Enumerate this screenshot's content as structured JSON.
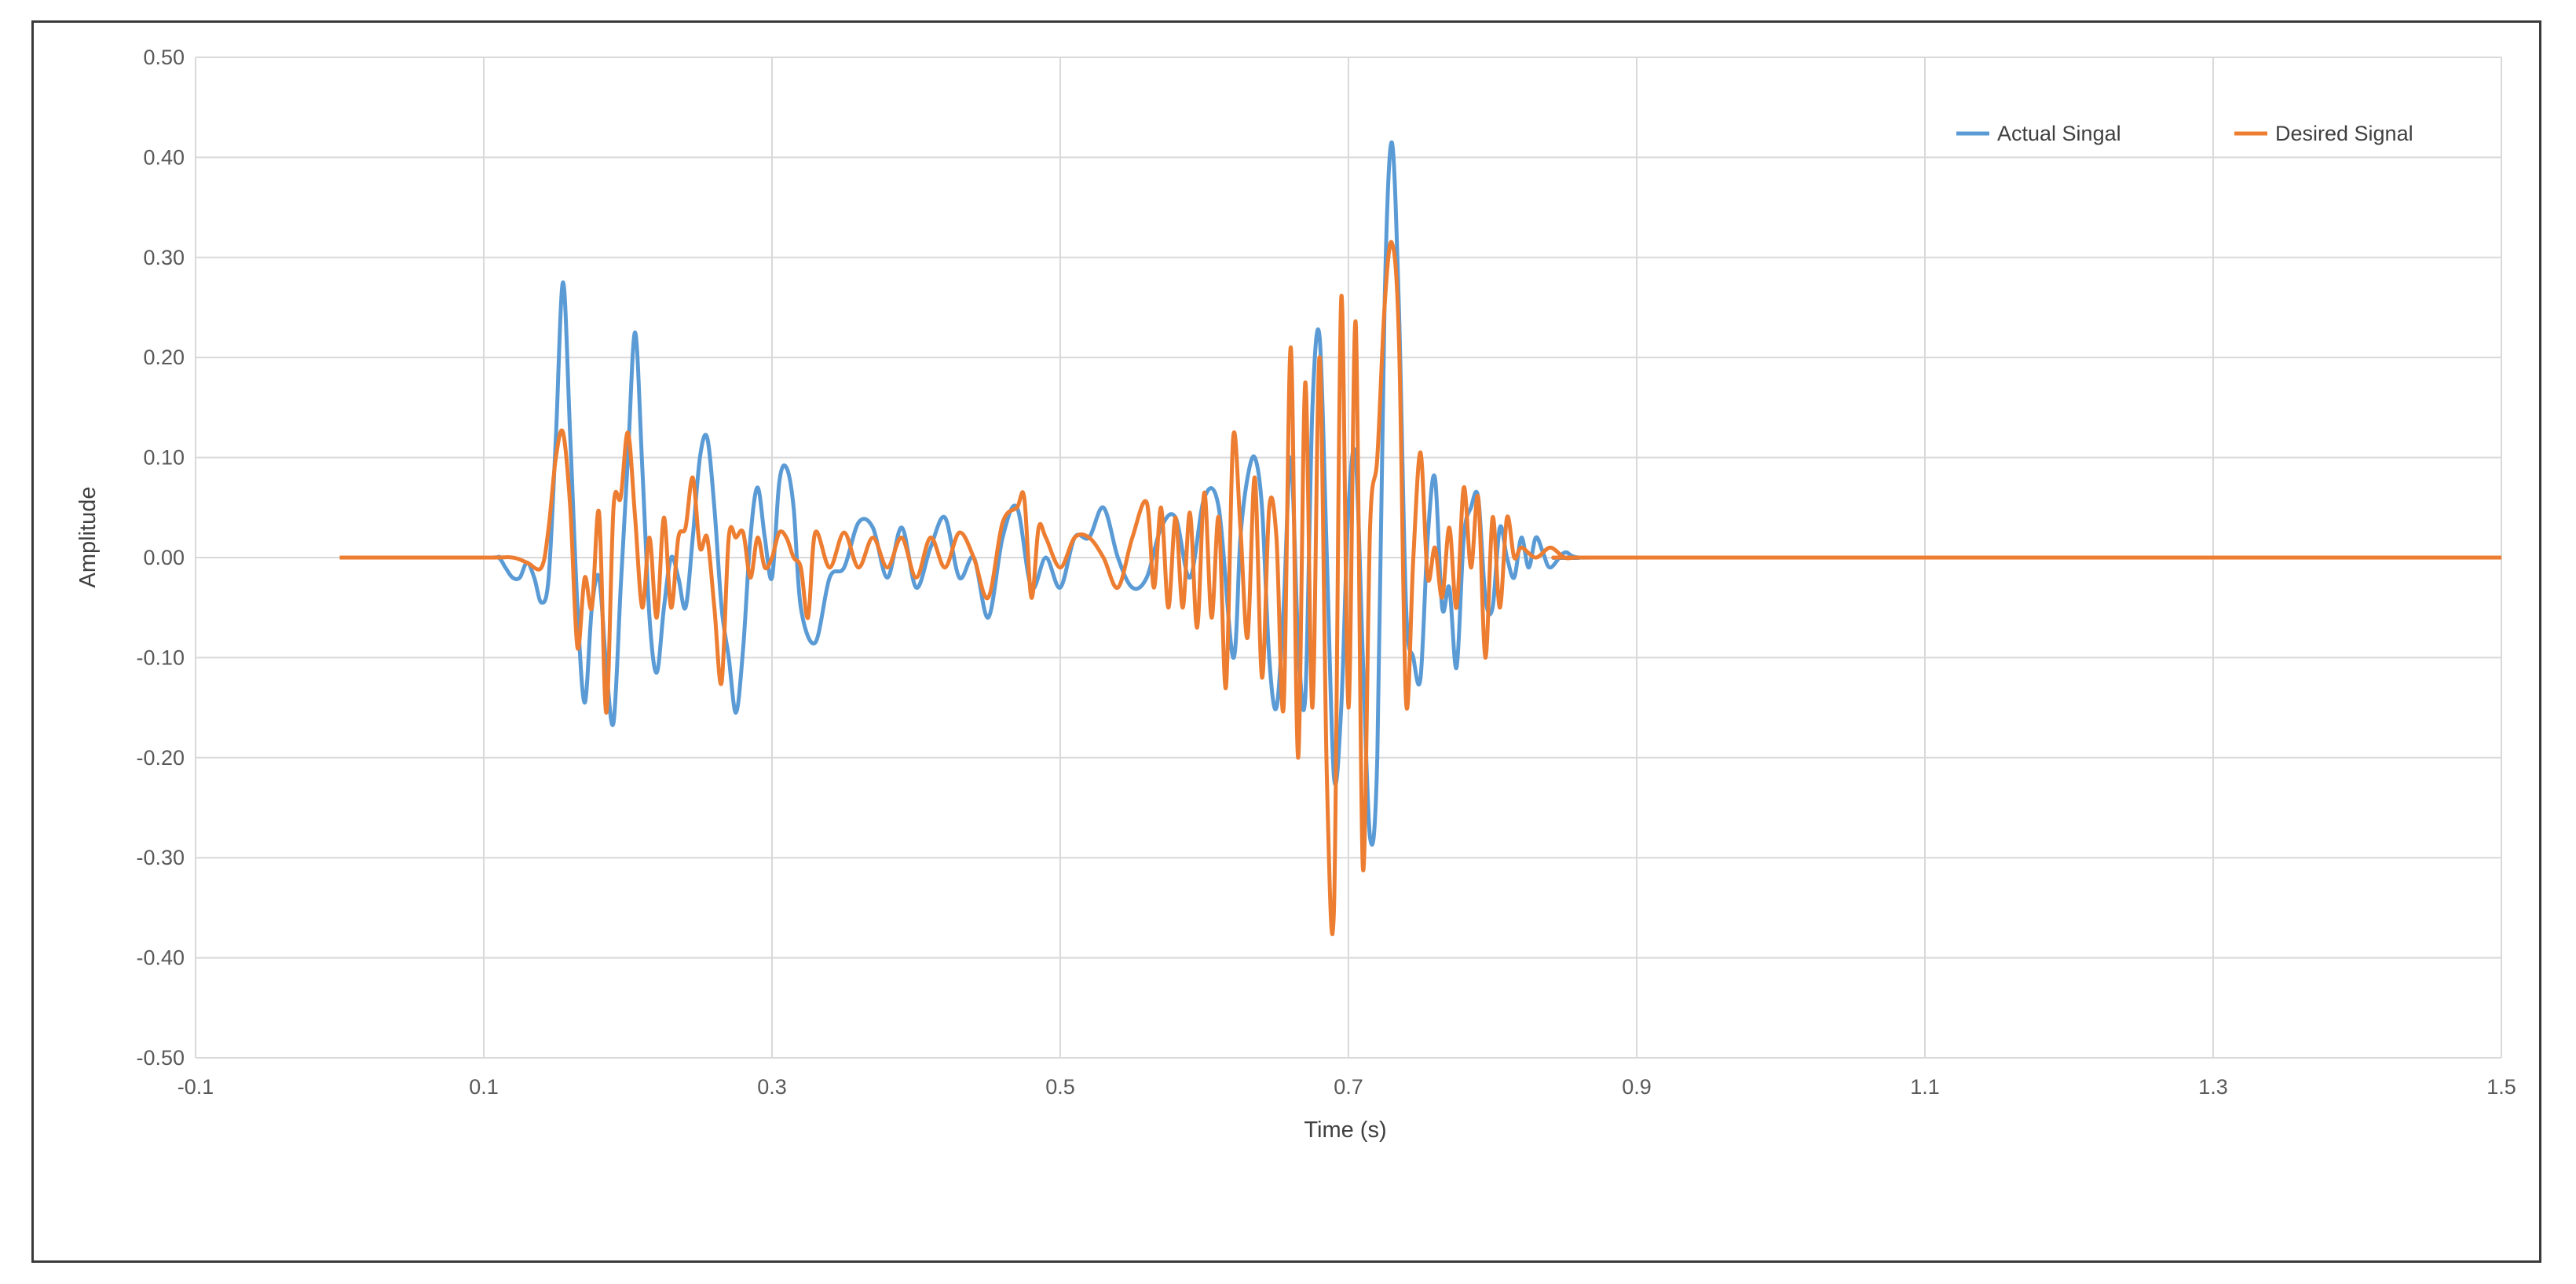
{
  "chart_data": {
    "type": "line",
    "title": "",
    "xlabel": "Time (s)",
    "ylabel": "Amplitude",
    "xlim": [
      -0.1,
      1.5
    ],
    "ylim": [
      -0.5,
      0.5
    ],
    "x_ticks": [
      -0.1,
      0.1,
      0.3,
      0.5,
      0.7,
      0.9,
      1.1,
      1.3,
      1.5
    ],
    "x_tick_labels": [
      "-0.1",
      "0.1",
      "0.3",
      "0.5",
      "0.7",
      "0.9",
      "1.1",
      "1.3",
      "1.5"
    ],
    "y_ticks": [
      -0.5,
      -0.4,
      -0.3,
      -0.2,
      -0.1,
      0.0,
      0.1,
      0.2,
      0.3,
      0.4,
      0.5
    ],
    "y_tick_labels": [
      "-0.50",
      "-0.40",
      "-0.30",
      "-0.20",
      "-0.10",
      "0.00",
      "0.10",
      "0.20",
      "0.30",
      "0.40",
      "0.50"
    ],
    "grid": true,
    "legend_position": "top-right",
    "series": [
      {
        "name": "Actual Singal",
        "color": "#5b9bd5",
        "x": [
          0.0,
          0.1,
          0.11,
          0.115,
          0.12,
          0.125,
          0.13,
          0.135,
          0.14,
          0.145,
          0.15,
          0.155,
          0.16,
          0.165,
          0.17,
          0.175,
          0.18,
          0.185,
          0.19,
          0.195,
          0.2,
          0.205,
          0.21,
          0.215,
          0.22,
          0.225,
          0.23,
          0.235,
          0.24,
          0.245,
          0.25,
          0.255,
          0.26,
          0.265,
          0.27,
          0.275,
          0.28,
          0.285,
          0.29,
          0.295,
          0.3,
          0.305,
          0.31,
          0.315,
          0.32,
          0.33,
          0.34,
          0.35,
          0.36,
          0.37,
          0.38,
          0.39,
          0.4,
          0.41,
          0.42,
          0.43,
          0.44,
          0.45,
          0.46,
          0.47,
          0.48,
          0.49,
          0.5,
          0.51,
          0.52,
          0.53,
          0.54,
          0.55,
          0.56,
          0.57,
          0.58,
          0.59,
          0.6,
          0.61,
          0.62,
          0.625,
          0.63,
          0.635,
          0.64,
          0.645,
          0.65,
          0.655,
          0.66,
          0.665,
          0.67,
          0.675,
          0.68,
          0.685,
          0.69,
          0.695,
          0.7,
          0.705,
          0.71,
          0.715,
          0.72,
          0.725,
          0.73,
          0.735,
          0.74,
          0.745,
          0.75,
          0.755,
          0.76,
          0.765,
          0.77,
          0.775,
          0.78,
          0.785,
          0.79,
          0.795,
          0.8,
          0.805,
          0.81,
          0.815,
          0.82,
          0.825,
          0.83,
          0.835,
          0.84,
          0.85,
          0.86,
          0.9,
          1.5
        ],
        "y": [
          0.0,
          0.0,
          0.0,
          -0.01,
          -0.02,
          -0.02,
          -0.005,
          -0.02,
          -0.045,
          -0.02,
          0.12,
          0.275,
          0.12,
          -0.05,
          -0.145,
          -0.05,
          -0.02,
          -0.11,
          -0.165,
          -0.03,
          0.1,
          0.225,
          0.09,
          -0.06,
          -0.115,
          -0.05,
          0.0,
          -0.02,
          -0.05,
          0.02,
          0.1,
          0.12,
          0.05,
          -0.05,
          -0.1,
          -0.155,
          -0.09,
          0.02,
          0.07,
          0.02,
          -0.02,
          0.075,
          0.09,
          0.05,
          -0.05,
          -0.085,
          -0.02,
          -0.01,
          0.035,
          0.03,
          -0.02,
          0.03,
          -0.03,
          0.01,
          0.04,
          -0.02,
          0.0,
          -0.06,
          0.02,
          0.05,
          -0.03,
          0.0,
          -0.03,
          0.02,
          0.02,
          0.05,
          0.0,
          -0.03,
          -0.02,
          0.03,
          0.04,
          -0.02,
          0.06,
          0.05,
          -0.1,
          0.02,
          0.08,
          0.1,
          0.05,
          -0.1,
          -0.15,
          -0.05,
          0.1,
          -0.08,
          -0.14,
          0.15,
          0.22,
          0.0,
          -0.22,
          -0.15,
          0.05,
          0.1,
          -0.1,
          -0.28,
          -0.2,
          0.25,
          0.415,
          0.25,
          -0.05,
          -0.1,
          -0.12,
          0.02,
          0.08,
          -0.05,
          -0.03,
          -0.11,
          0.02,
          0.05,
          0.06,
          -0.04,
          -0.05,
          0.03,
          0.0,
          -0.02,
          0.02,
          -0.01,
          0.02,
          0.005,
          -0.01,
          0.005,
          0.0,
          0.0,
          0.0
        ]
      },
      {
        "name": "Desired Signal",
        "color": "#ed7d31",
        "x": [
          0.0,
          0.1,
          0.12,
          0.13,
          0.14,
          0.145,
          0.15,
          0.155,
          0.16,
          0.165,
          0.17,
          0.175,
          0.18,
          0.185,
          0.19,
          0.195,
          0.2,
          0.205,
          0.21,
          0.215,
          0.22,
          0.225,
          0.23,
          0.235,
          0.24,
          0.245,
          0.25,
          0.255,
          0.26,
          0.265,
          0.27,
          0.275,
          0.28,
          0.285,
          0.29,
          0.295,
          0.3,
          0.305,
          0.31,
          0.315,
          0.32,
          0.325,
          0.33,
          0.34,
          0.35,
          0.36,
          0.37,
          0.38,
          0.39,
          0.4,
          0.41,
          0.42,
          0.43,
          0.44,
          0.45,
          0.46,
          0.47,
          0.475,
          0.48,
          0.485,
          0.49,
          0.5,
          0.51,
          0.52,
          0.53,
          0.54,
          0.55,
          0.56,
          0.565,
          0.57,
          0.575,
          0.58,
          0.585,
          0.59,
          0.595,
          0.6,
          0.605,
          0.61,
          0.615,
          0.62,
          0.625,
          0.63,
          0.635,
          0.64,
          0.645,
          0.65,
          0.655,
          0.66,
          0.665,
          0.67,
          0.675,
          0.68,
          0.685,
          0.69,
          0.695,
          0.7,
          0.705,
          0.71,
          0.715,
          0.72,
          0.725,
          0.73,
          0.735,
          0.74,
          0.745,
          0.75,
          0.755,
          0.76,
          0.765,
          0.77,
          0.775,
          0.78,
          0.785,
          0.79,
          0.795,
          0.8,
          0.805,
          0.81,
          0.815,
          0.82,
          0.83,
          0.84,
          0.85,
          0.86,
          0.9,
          1.5
        ],
        "y": [
          0.0,
          0.0,
          0.0,
          -0.005,
          -0.01,
          0.03,
          0.1,
          0.125,
          0.05,
          -0.09,
          -0.02,
          -0.05,
          0.045,
          -0.155,
          0.05,
          0.06,
          0.125,
          0.04,
          -0.05,
          0.02,
          -0.06,
          0.04,
          -0.05,
          0.02,
          0.03,
          0.08,
          0.01,
          0.02,
          -0.05,
          -0.125,
          0.02,
          0.02,
          0.025,
          -0.02,
          0.02,
          -0.01,
          0.0,
          0.025,
          0.02,
          0.0,
          -0.01,
          -0.06,
          0.025,
          -0.01,
          0.025,
          -0.01,
          0.02,
          -0.01,
          0.02,
          -0.02,
          0.02,
          -0.01,
          0.025,
          0.0,
          -0.04,
          0.035,
          0.05,
          0.06,
          -0.04,
          0.03,
          0.02,
          -0.01,
          0.02,
          0.02,
          0.0,
          -0.03,
          0.02,
          0.055,
          -0.03,
          0.05,
          -0.05,
          0.04,
          -0.05,
          0.045,
          -0.07,
          0.065,
          -0.06,
          0.04,
          -0.13,
          0.12,
          0.03,
          -0.08,
          0.08,
          -0.12,
          0.05,
          0.02,
          -0.15,
          0.21,
          -0.2,
          0.175,
          -0.15,
          0.2,
          -0.22,
          -0.35,
          0.26,
          -0.15,
          0.235,
          -0.31,
          0.03,
          0.1,
          0.25,
          0.315,
          0.22,
          -0.145,
          0.0,
          0.105,
          -0.02,
          0.01,
          -0.04,
          0.03,
          -0.05,
          0.07,
          -0.01,
          0.06,
          -0.1,
          0.04,
          -0.05,
          0.04,
          0.0,
          0.01,
          0.0,
          0.01,
          0.0,
          0.0,
          0.0,
          0.0
        ]
      }
    ]
  }
}
